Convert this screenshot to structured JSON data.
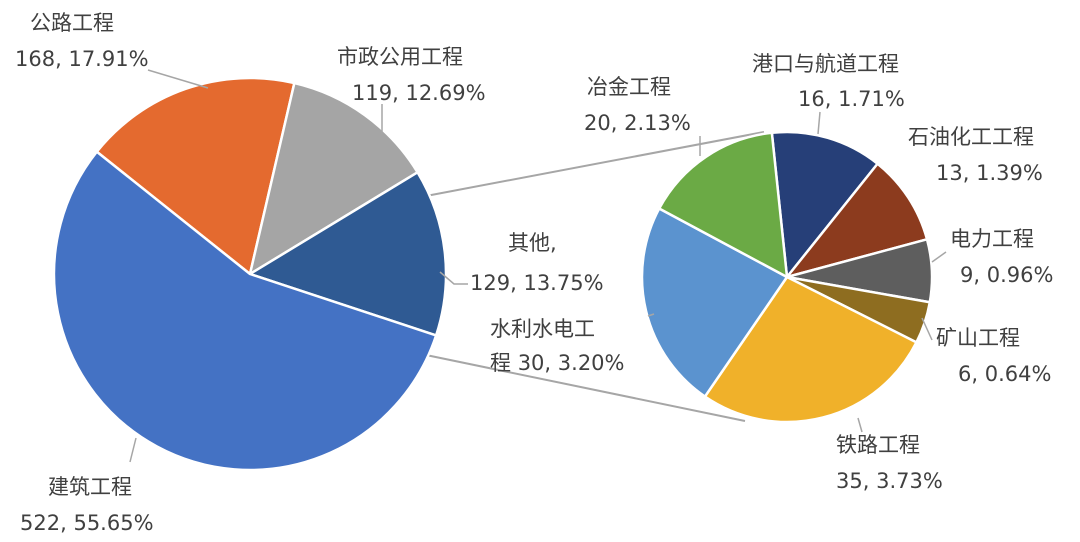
{
  "chart_data": {
    "type": "pie",
    "subtype": "pie-of-pie",
    "title": "",
    "main_pie": {
      "slices": [
        {
          "name": "公路工程",
          "value": 168,
          "percent": "17.91%",
          "color": "#E46A2F"
        },
        {
          "name": "市政公用工程",
          "value": 119,
          "percent": "12.69%",
          "color": "#A5A5A5"
        },
        {
          "name": "其他,",
          "value": 129,
          "percent": "13.75%",
          "color": "#2F5A93"
        },
        {
          "name": "建筑工程",
          "value": 522,
          "percent": "55.65%",
          "color": "#4472C4"
        }
      ]
    },
    "secondary_pie": {
      "slices": [
        {
          "name": "港口与航道工程",
          "value": 16,
          "percent": "1.71%",
          "color": "#263F78"
        },
        {
          "name": "石油化工工程",
          "value": 13,
          "percent": "1.39%",
          "color": "#8C3B1E"
        },
        {
          "name": "电力工程",
          "value": 9,
          "percent": "0.96%",
          "color": "#5E5E5E"
        },
        {
          "name": "矿山工程",
          "value": 6,
          "percent": "0.64%",
          "color": "#8E6D20"
        },
        {
          "name": "铁路工程",
          "value": 35,
          "percent": "3.73%",
          "color": "#F0B12A"
        },
        {
          "name": "水利水电工程",
          "value": 30,
          "percent": "3.20%",
          "color": "#5B93CF"
        },
        {
          "name": "冶金工程",
          "value": 20,
          "percent": "2.13%",
          "color": "#6BAA45"
        }
      ]
    },
    "legend": "none"
  }
}
